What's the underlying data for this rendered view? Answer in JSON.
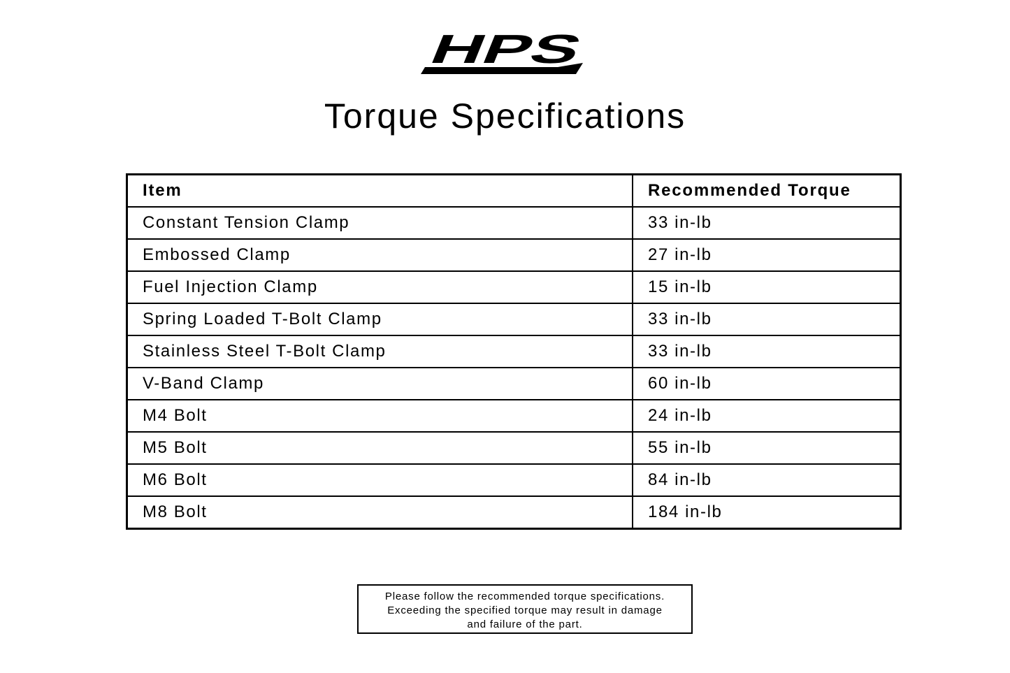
{
  "logo": {
    "text": "HPS",
    "color": "#000000"
  },
  "title": "Torque Specifications",
  "table": {
    "headers": [
      "Item",
      "Recommended Torque"
    ],
    "rows": [
      [
        "Constant Tension Clamp",
        "33 in-lb"
      ],
      [
        "Embossed Clamp",
        "27 in-lb"
      ],
      [
        "Fuel Injection Clamp",
        "15 in-lb"
      ],
      [
        "Spring Loaded T-Bolt Clamp",
        "33 in-lb"
      ],
      [
        "Stainless Steel T-Bolt Clamp",
        "33 in-lb"
      ],
      [
        "V-Band Clamp",
        "60 in-lb"
      ],
      [
        "M4 Bolt",
        "24 in-lb"
      ],
      [
        "M5 Bolt",
        "55 in-lb"
      ],
      [
        "M6 Bolt",
        "84 in-lb"
      ],
      [
        "M8 Bolt",
        "184 in-lb"
      ]
    ]
  },
  "note": {
    "lines": [
      "Please follow the recommended torque specifications.",
      "Exceeding the specified torque may result in damage",
      "and failure of the part."
    ]
  }
}
